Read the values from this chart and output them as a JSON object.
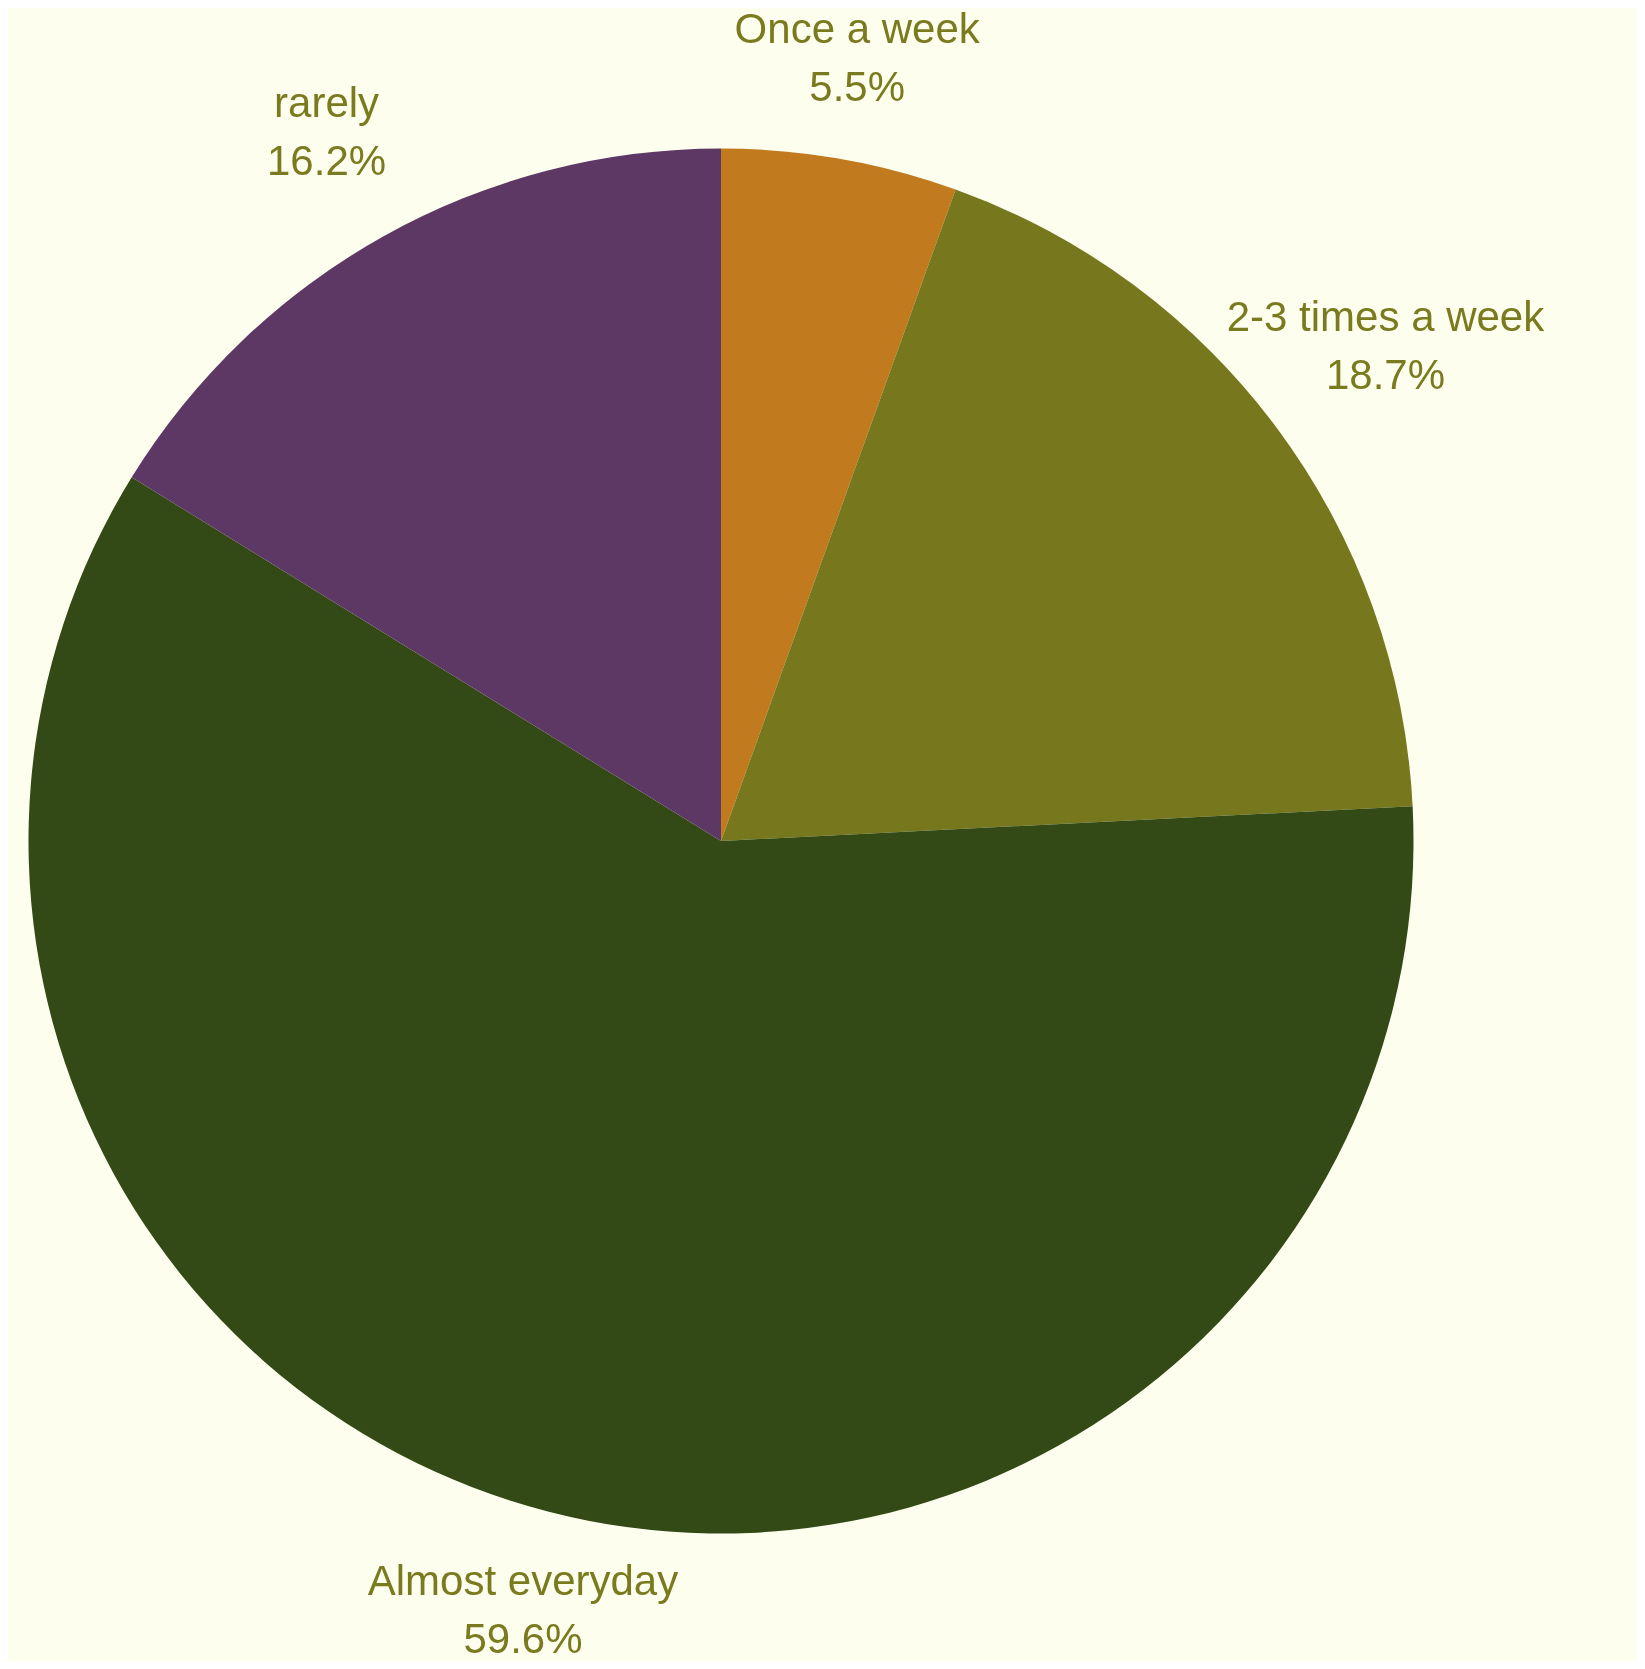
{
  "chart_data": {
    "type": "pie",
    "categories": [
      "Once a week",
      "2-3 times a week",
      "Almost everyday",
      "rarely"
    ],
    "values": [
      5.5,
      18.7,
      59.6,
      16.2
    ],
    "colors": [
      "#c27a1e",
      "#77781e",
      "#334a17",
      "#5d3865"
    ],
    "value_labels": [
      "5.5%",
      "18.7%",
      "59.6%",
      "16.2%"
    ],
    "legend": false
  }
}
